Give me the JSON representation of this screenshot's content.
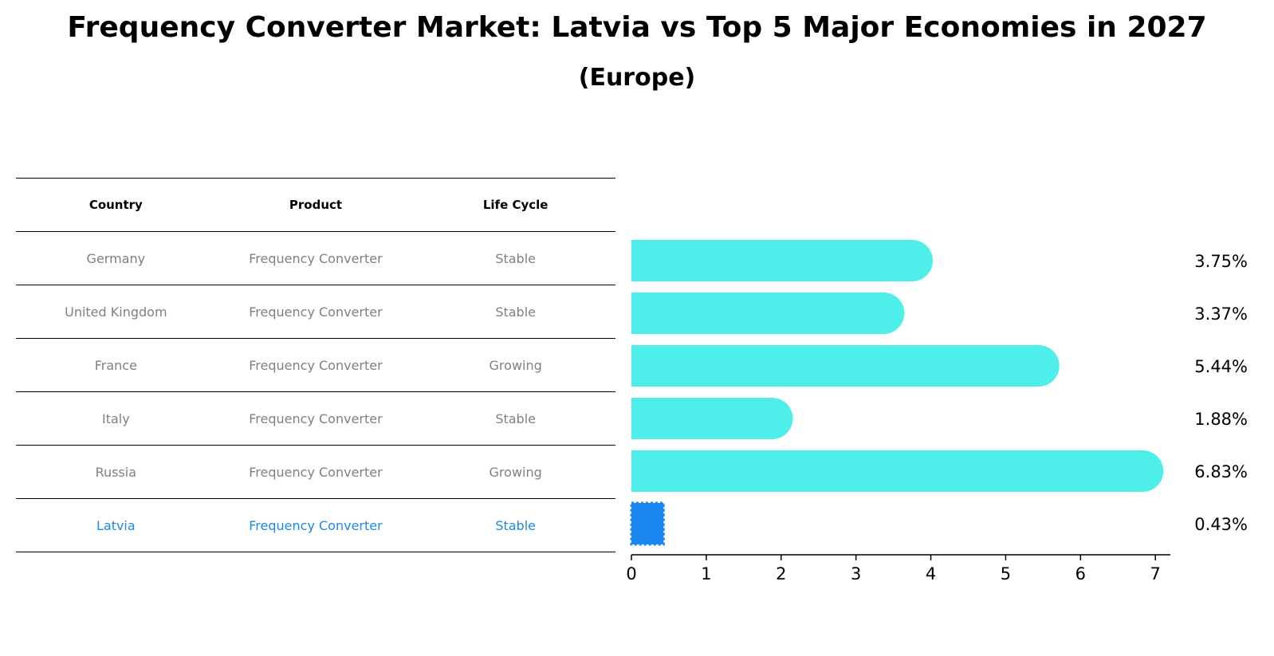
{
  "title": "Frequency Converter Market: Latvia vs Top 5 Major Economies in 2027",
  "subtitle": "(Europe)",
  "colors": {
    "bar": "#4eeeea",
    "highlight_bar": "#1a86f0",
    "highlight_text": "#1e88e5",
    "muted_text": "#808080"
  },
  "table": {
    "headers": [
      "Country",
      "Product",
      "Life Cycle"
    ],
    "rows": [
      {
        "country": "Germany",
        "product": "Frequency Converter",
        "life_cycle": "Stable",
        "highlight": false
      },
      {
        "country": "United Kingdom",
        "product": "Frequency Converter",
        "life_cycle": "Stable",
        "highlight": false
      },
      {
        "country": "France",
        "product": "Frequency Converter",
        "life_cycle": "Growing",
        "highlight": false
      },
      {
        "country": "Italy",
        "product": "Frequency Converter",
        "life_cycle": "Stable",
        "highlight": false
      },
      {
        "country": "Russia",
        "product": "Frequency Converter",
        "life_cycle": "Growing",
        "highlight": false
      },
      {
        "country": "Latvia",
        "product": "Frequency Converter",
        "life_cycle": "Stable",
        "highlight": true
      }
    ]
  },
  "chart_data": {
    "type": "bar",
    "orientation": "horizontal",
    "categories": [
      "Germany",
      "United Kingdom",
      "France",
      "Italy",
      "Russia",
      "Latvia"
    ],
    "values": [
      3.75,
      3.37,
      5.44,
      1.88,
      6.83,
      0.43
    ],
    "value_labels": [
      "3.75%",
      "3.37%",
      "5.44%",
      "1.88%",
      "6.83%",
      "0.43%"
    ],
    "highlight_category": "Latvia",
    "xlim": [
      0,
      7.2
    ],
    "xticks": [
      0,
      1,
      2,
      3,
      4,
      5,
      6,
      7
    ],
    "xlabel": "",
    "ylabel": "",
    "grid": false
  }
}
